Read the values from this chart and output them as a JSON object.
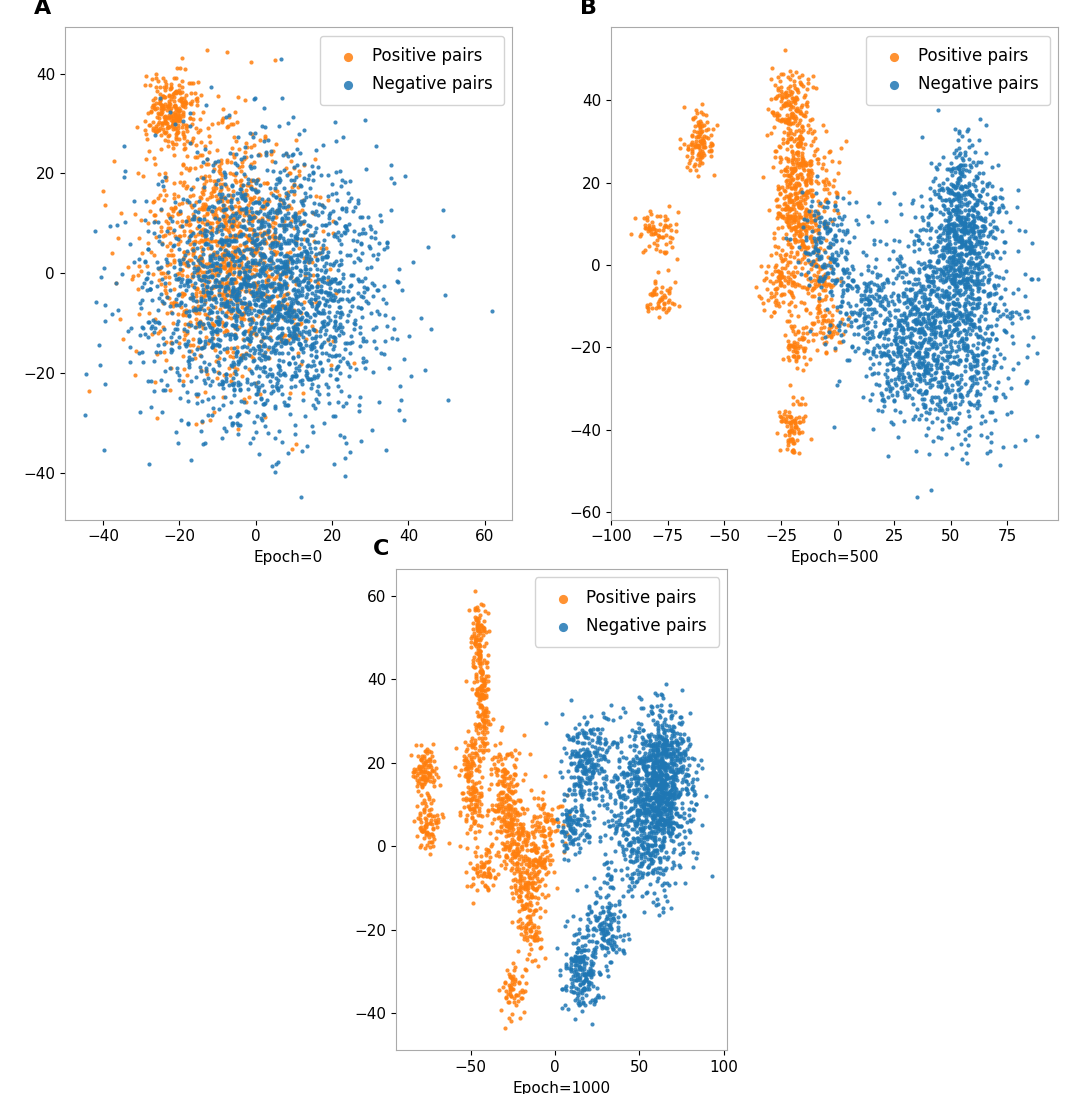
{
  "panels": [
    {
      "label": "A",
      "xlabel": "Epoch=0"
    },
    {
      "label": "B",
      "xlabel": "Epoch=500"
    },
    {
      "label": "C",
      "xlabel": "Epoch=1000"
    }
  ],
  "positive_color": "#ff7f0e",
  "negative_color": "#1f77b4",
  "positive_label": "Positive pairs",
  "negative_label": "Negative pairs",
  "marker_size": 3,
  "alpha": 0.85,
  "legend_fontsize": 12,
  "tick_fontsize": 11,
  "panel_label_fontsize": 16
}
